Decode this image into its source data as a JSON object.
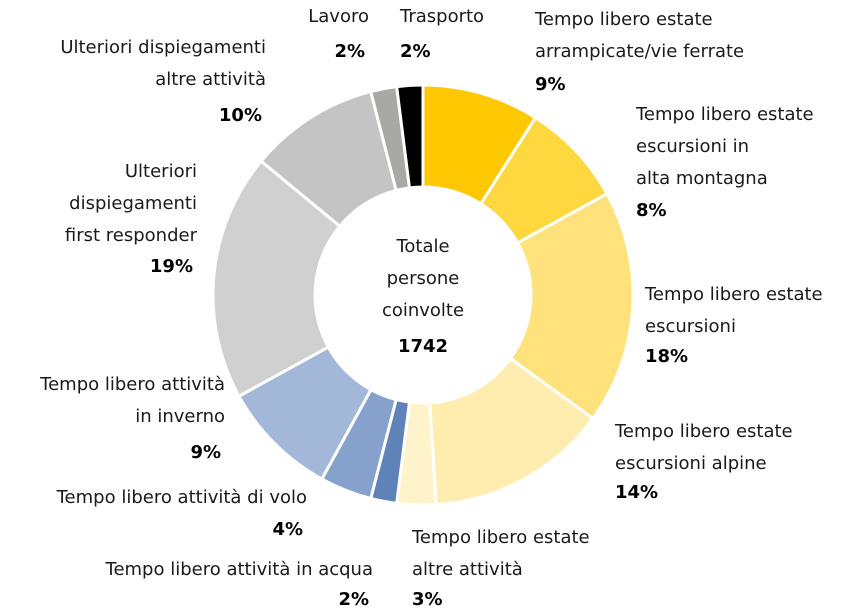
{
  "chart_data": {
    "type": "donut",
    "categories": [
      [
        "Tempo libero estate",
        "arrampicate/vie ferrate"
      ],
      [
        "Tempo libero estate",
        "escursioni in",
        "alta montagna"
      ],
      [
        "Tempo libero estate",
        "escursioni"
      ],
      [
        "Tempo libero estate",
        "escursioni alpine"
      ],
      [
        "Tempo libero estate",
        "altre attività"
      ],
      [
        "Tempo libero attività in acqua"
      ],
      [
        "Tempo libero attività di volo"
      ],
      [
        "Tempo libero attività",
        "in inverno"
      ],
      [
        "Ulteriori",
        "dispiegamenti",
        "first responder"
      ],
      [
        "Ulteriori dispiegamenti",
        "altre attività"
      ],
      [
        "Lavoro"
      ],
      [
        "Trasporto"
      ]
    ],
    "values": [
      9,
      8,
      18,
      14,
      3,
      2,
      4,
      9,
      19,
      10,
      2,
      2
    ],
    "value_labels": [
      "9%",
      "8%",
      "18%",
      "14%",
      "3%",
      "2%",
      "4%",
      "9%",
      "19%",
      "10%",
      "2%",
      "2%"
    ],
    "colors": [
      "#ffc800",
      "#ffd840",
      "#ffe27c",
      "#ffedb0",
      "#fff3cc",
      "#5f82b8",
      "#86a2cc",
      "#a3b8d8",
      "#d0d0d0",
      "#c4c4c4",
      "#a8a8a4",
      "#000000"
    ],
    "center_label": [
      "Totale",
      "persone",
      "coinvolte"
    ],
    "total": 1742
  }
}
